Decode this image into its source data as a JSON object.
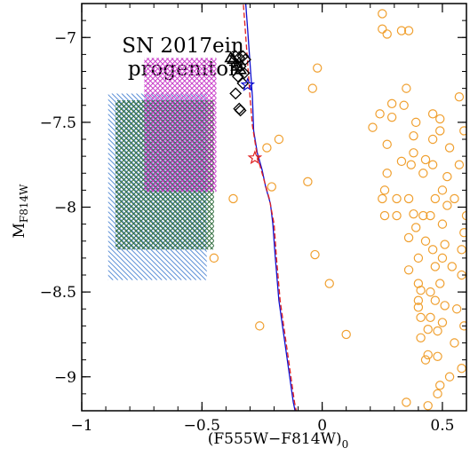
{
  "chart_data": {
    "type": "scatter",
    "annotation_lines": [
      "SN 2017ein",
      "progenitor"
    ],
    "xlabel": "(F555W−F814W)",
    "xlabel_subscript": "0",
    "ylabel_main": "M",
    "ylabel_subscript": "F814W",
    "xlim": [
      -1.0,
      0.6
    ],
    "ylim": [
      -6.8,
      -9.2
    ],
    "x_ticks": [
      -1,
      -0.5,
      0,
      0.5
    ],
    "x_tick_labels": [
      "−1",
      "−0.5",
      "0",
      "0.5"
    ],
    "y_ticks": [
      -7,
      -7.5,
      -8,
      -8.5,
      -9
    ],
    "y_tick_labels": [
      "−7",
      "−7.5",
      "−8",
      "−8.5",
      "−9"
    ],
    "colors": {
      "field_stars": "#f0a030",
      "blue_region": "#5b8fd6",
      "green_region": "#2e6b3c",
      "magenta_region": "#c83cc8",
      "blue_track": "#1010d0",
      "red_track": "#e02020",
      "black_symbols": "#000000"
    },
    "regions": [
      {
        "color_key": "blue_region",
        "x": [
          -0.89,
          -0.48
        ],
        "y": [
          -7.33,
          -8.43
        ],
        "hatch": "down"
      },
      {
        "color_key": "green_region",
        "x": [
          -0.86,
          -0.45
        ],
        "y": [
          -7.37,
          -8.25
        ],
        "hatch": "cross"
      },
      {
        "color_key": "magenta_region",
        "x": [
          -0.74,
          -0.44
        ],
        "y": [
          -7.12,
          -7.91
        ],
        "hatch": "cross"
      }
    ],
    "tracks": [
      {
        "color_key": "blue_track",
        "style": "solid",
        "points": [
          [
            -0.32,
            -6.76
          ],
          [
            -0.31,
            -6.95
          ],
          [
            -0.3,
            -7.15
          ],
          [
            -0.29,
            -7.35
          ],
          [
            -0.285,
            -7.55
          ],
          [
            -0.27,
            -7.68
          ],
          [
            -0.25,
            -7.78
          ],
          [
            -0.235,
            -7.88
          ],
          [
            -0.215,
            -7.98
          ],
          [
            -0.205,
            -8.1
          ],
          [
            -0.195,
            -8.3
          ],
          [
            -0.18,
            -8.55
          ],
          [
            -0.16,
            -8.75
          ],
          [
            -0.14,
            -8.95
          ],
          [
            -0.12,
            -9.15
          ],
          [
            -0.11,
            -9.22
          ]
        ]
      },
      {
        "color_key": "red_track",
        "style": "dashed",
        "points": [
          [
            -0.33,
            -6.76
          ],
          [
            -0.32,
            -6.95
          ],
          [
            -0.31,
            -7.15
          ],
          [
            -0.3,
            -7.35
          ],
          [
            -0.29,
            -7.52
          ],
          [
            -0.27,
            -7.7
          ],
          [
            -0.24,
            -7.85
          ],
          [
            -0.22,
            -7.95
          ],
          [
            -0.2,
            -8.1
          ],
          [
            -0.19,
            -8.3
          ],
          [
            -0.175,
            -8.55
          ],
          [
            -0.155,
            -8.75
          ],
          [
            -0.135,
            -8.95
          ],
          [
            -0.115,
            -9.15
          ],
          [
            -0.105,
            -9.22
          ]
        ]
      }
    ],
    "star_markers": [
      {
        "color_key": "red_track",
        "x": -0.28,
        "y": -7.71
      },
      {
        "color_key": "blue_track",
        "x": -0.31,
        "y": -7.28
      }
    ],
    "black_diamonds": [
      [
        -0.345,
        -7.42
      ],
      [
        -0.34,
        -7.43
      ],
      [
        -0.36,
        -7.33
      ],
      [
        -0.33,
        -7.27
      ],
      [
        -0.35,
        -7.23
      ],
      [
        -0.325,
        -7.21
      ],
      [
        -0.34,
        -7.17
      ],
      [
        -0.355,
        -7.16
      ],
      [
        -0.32,
        -7.13
      ],
      [
        -0.345,
        -7.12
      ],
      [
        -0.36,
        -7.11
      ],
      [
        -0.33,
        -7.11
      ]
    ],
    "black_triangles": [
      [
        -0.38,
        -7.12
      ],
      [
        -0.37,
        -7.13
      ],
      [
        -0.355,
        -7.17
      ],
      [
        -0.34,
        -7.19
      ]
    ],
    "field_stars": [
      [
        -0.45,
        -8.3
      ],
      [
        -0.37,
        -7.95
      ],
      [
        -0.26,
        -8.7
      ],
      [
        -0.23,
        -7.65
      ],
      [
        -0.21,
        -7.88
      ],
      [
        -0.18,
        -7.6
      ],
      [
        -0.06,
        -7.85
      ],
      [
        -0.03,
        -8.28
      ],
      [
        -0.04,
        -7.3
      ],
      [
        -0.02,
        -7.18
      ],
      [
        0.03,
        -8.45
      ],
      [
        0.1,
        -8.75
      ],
      [
        0.21,
        -7.53
      ],
      [
        0.24,
        -7.45
      ],
      [
        0.25,
        -7.95
      ],
      [
        0.26,
        -7.9
      ],
      [
        0.26,
        -8.05
      ],
      [
        0.27,
        -7.8
      ],
      [
        0.27,
        -7.63
      ],
      [
        0.25,
        -6.95
      ],
      [
        0.27,
        -6.98
      ],
      [
        0.25,
        -6.86
      ],
      [
        0.29,
        -7.39
      ],
      [
        0.29,
        -7.47
      ],
      [
        0.31,
        -8.05
      ],
      [
        0.31,
        -7.95
      ],
      [
        0.33,
        -7.73
      ],
      [
        0.34,
        -7.4
      ],
      [
        0.35,
        -7.3
      ],
      [
        0.33,
        -6.96
      ],
      [
        0.36,
        -6.96
      ],
      [
        0.36,
        -7.95
      ],
      [
        0.36,
        -8.18
      ],
      [
        0.36,
        -8.37
      ],
      [
        0.35,
        -9.15
      ],
      [
        0.38,
        -8.04
      ],
      [
        0.37,
        -7.75
      ],
      [
        0.38,
        -7.68
      ],
      [
        0.38,
        -7.58
      ],
      [
        0.39,
        -7.5
      ],
      [
        0.39,
        -8.12
      ],
      [
        0.4,
        -8.3
      ],
      [
        0.4,
        -8.45
      ],
      [
        0.4,
        -8.55
      ],
      [
        0.41,
        -8.65
      ],
      [
        0.41,
        -8.77
      ],
      [
        0.4,
        -8.59
      ],
      [
        0.41,
        -8.49
      ],
      [
        0.42,
        -7.8
      ],
      [
        0.42,
        -8.05
      ],
      [
        0.43,
        -7.72
      ],
      [
        0.43,
        -8.2
      ],
      [
        0.43,
        -8.9
      ],
      [
        0.44,
        -9.17
      ],
      [
        0.44,
        -8.87
      ],
      [
        0.44,
        -8.72
      ],
      [
        0.45,
        -8.65
      ],
      [
        0.45,
        -8.5
      ],
      [
        0.45,
        -8.05
      ],
      [
        0.46,
        -8.25
      ],
      [
        0.46,
        -7.45
      ],
      [
        0.46,
        -7.6
      ],
      [
        0.46,
        -7.75
      ],
      [
        0.47,
        -7.95
      ],
      [
        0.47,
        -8.35
      ],
      [
        0.47,
        -8.55
      ],
      [
        0.48,
        -8.73
      ],
      [
        0.48,
        -8.88
      ],
      [
        0.48,
        -9.1
      ],
      [
        0.49,
        -9.05
      ],
      [
        0.49,
        -8.45
      ],
      [
        0.49,
        -7.55
      ],
      [
        0.49,
        -7.48
      ],
      [
        0.5,
        -7.9
      ],
      [
        0.5,
        -8.1
      ],
      [
        0.5,
        -8.3
      ],
      [
        0.5,
        -8.68
      ],
      [
        0.51,
        -8.58
      ],
      [
        0.51,
        -8.22
      ],
      [
        0.52,
        -7.99
      ],
      [
        0.52,
        -7.82
      ],
      [
        0.53,
        -7.65
      ],
      [
        0.53,
        -9.0
      ],
      [
        0.54,
        -8.35
      ],
      [
        0.55,
        -7.95
      ],
      [
        0.55,
        -8.8
      ],
      [
        0.56,
        -8.6
      ],
      [
        0.57,
        -7.75
      ],
      [
        0.57,
        -7.35
      ],
      [
        0.58,
        -8.25
      ],
      [
        0.58,
        -8.4
      ],
      [
        0.58,
        -8.95
      ],
      [
        0.59,
        -8.7
      ],
      [
        0.59,
        -8.15
      ],
      [
        0.59,
        -7.55
      ],
      [
        0.6,
        -8.05
      ]
    ]
  }
}
